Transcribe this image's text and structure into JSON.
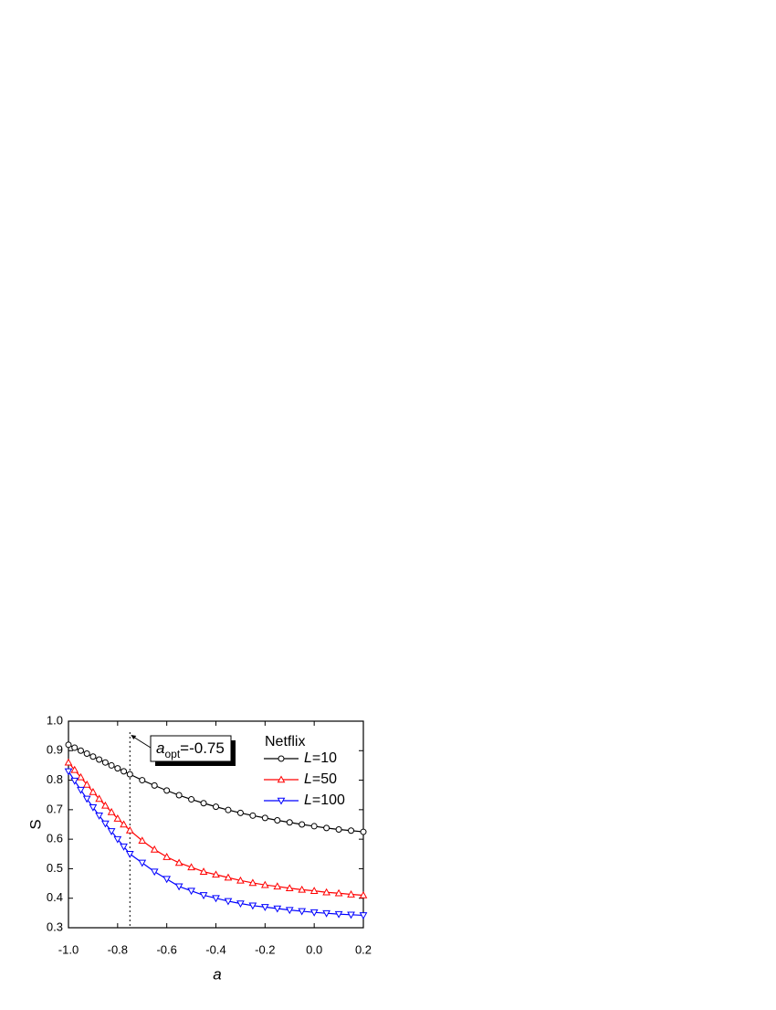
{
  "chart_data": {
    "type": "line",
    "x_label": "a",
    "y_label": "S",
    "x": [
      -1.0,
      -0.975,
      -0.95,
      -0.925,
      -0.9,
      -0.875,
      -0.85,
      -0.825,
      -0.8,
      -0.775,
      -0.75,
      -0.7,
      -0.65,
      -0.6,
      -0.55,
      -0.5,
      -0.45,
      -0.4,
      -0.35,
      -0.3,
      -0.25,
      -0.2,
      -0.15,
      -0.1,
      -0.05,
      0.0,
      0.05,
      0.1,
      0.15,
      0.2
    ],
    "series": [
      {
        "name": "L=10",
        "color": "#000000",
        "marker": "circle",
        "values": [
          0.92,
          0.91,
          0.9,
          0.89,
          0.88,
          0.87,
          0.86,
          0.85,
          0.84,
          0.83,
          0.82,
          0.8,
          0.782,
          0.765,
          0.749,
          0.735,
          0.722,
          0.71,
          0.699,
          0.689,
          0.68,
          0.672,
          0.664,
          0.657,
          0.65,
          0.644,
          0.638,
          0.633,
          0.629,
          0.625
        ]
      },
      {
        "name": "L=50",
        "color": "#ff0000",
        "marker": "triangle-up",
        "values": [
          0.86,
          0.835,
          0.81,
          0.785,
          0.76,
          0.737,
          0.714,
          0.692,
          0.67,
          0.65,
          0.63,
          0.595,
          0.565,
          0.54,
          0.52,
          0.505,
          0.49,
          0.48,
          0.47,
          0.46,
          0.452,
          0.445,
          0.44,
          0.434,
          0.429,
          0.425,
          0.42,
          0.417,
          0.413,
          0.41
        ]
      },
      {
        "name": "L=100",
        "color": "#0000ff",
        "marker": "triangle-down",
        "values": [
          0.83,
          0.798,
          0.767,
          0.737,
          0.708,
          0.68,
          0.653,
          0.627,
          0.6,
          0.575,
          0.55,
          0.52,
          0.49,
          0.465,
          0.44,
          0.425,
          0.41,
          0.4,
          0.39,
          0.382,
          0.375,
          0.37,
          0.365,
          0.36,
          0.356,
          0.352,
          0.349,
          0.346,
          0.344,
          0.342
        ]
      }
    ],
    "legend_title": "Netflix",
    "legend_position": "upper-right",
    "annotation": {
      "symbol": "a",
      "subscript": "opt",
      "text": "=-0.75",
      "x": -0.75
    },
    "xlim": [
      -1.0,
      0.2
    ],
    "xticks": [
      {
        "value": -1.0,
        "label": "-1.0"
      },
      -0.8,
      -0.6,
      -0.4,
      -0.2,
      {
        "value": 0.0,
        "label": "0.0"
      },
      0.2
    ],
    "ylim": [
      0.3,
      1.0
    ],
    "yticks": [
      0.3,
      0.4,
      0.5,
      0.6,
      0.7,
      0.8,
      0.9,
      {
        "value": 1.0,
        "label": "1.0"
      }
    ],
    "grid": false
  }
}
